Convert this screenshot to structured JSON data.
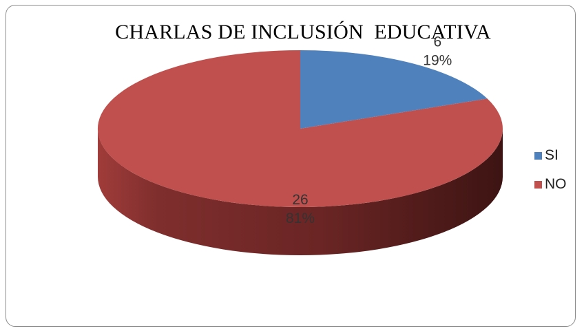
{
  "chart_data": {
    "type": "pie",
    "title": "CHARLAS DE INCLUSIÓN  EDUCATIVA",
    "categories": [
      "SI",
      "NO"
    ],
    "values": [
      6,
      26
    ],
    "percent_labels": [
      "19%",
      "81%"
    ],
    "colors": [
      "#4f81bd",
      "#c0504d"
    ],
    "legend_position": "right",
    "three_d": true
  }
}
